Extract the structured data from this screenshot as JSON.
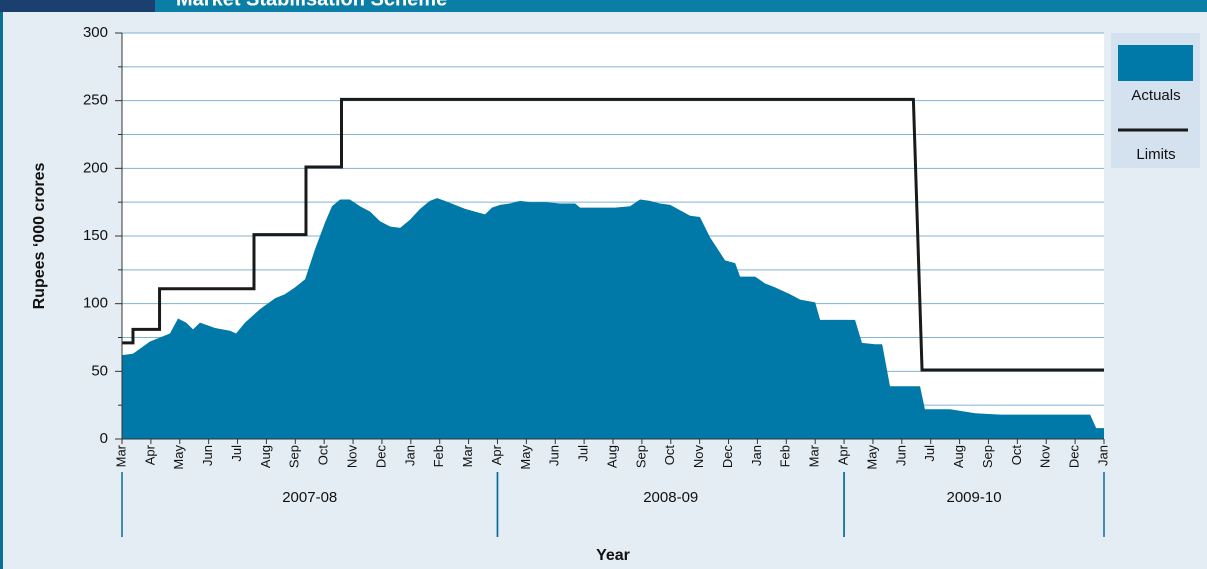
{
  "chart_data": {
    "type": "area-line",
    "title": "Market Stabilisation Scheme",
    "y_label": "Rupees ‘000 crores",
    "x_label": "Year",
    "xlim": [
      0,
      34
    ],
    "xticks": [
      {
        "value": 0,
        "label": "Mar"
      },
      {
        "value": 1,
        "label": "Apr"
      },
      {
        "value": 2,
        "label": "May"
      },
      {
        "value": 3,
        "label": "Jun"
      },
      {
        "value": 4,
        "label": "Jul"
      },
      {
        "value": 5,
        "label": "Aug"
      },
      {
        "value": 6,
        "label": "Sep"
      },
      {
        "value": 7,
        "label": "Oct"
      },
      {
        "value": 8,
        "label": "Nov"
      },
      {
        "value": 9,
        "label": "Dec"
      },
      {
        "value": 10,
        "label": "Jan"
      },
      {
        "value": 11,
        "label": "Feb"
      },
      {
        "value": 12,
        "label": "Mar"
      },
      {
        "value": 13,
        "label": "Apr"
      },
      {
        "value": 14,
        "label": "May"
      },
      {
        "value": 15,
        "label": "Jun"
      },
      {
        "value": 16,
        "label": "Jul"
      },
      {
        "value": 17,
        "label": "Aug"
      },
      {
        "value": 18,
        "label": "Sep"
      },
      {
        "value": 19,
        "label": "Oct"
      },
      {
        "value": 20,
        "label": "Nov"
      },
      {
        "value": 21,
        "label": "Dec"
      },
      {
        "value": 22,
        "label": "Jan"
      },
      {
        "value": 23,
        "label": "Feb"
      },
      {
        "value": 24,
        "label": "Mar"
      },
      {
        "value": 25,
        "label": "Apr"
      },
      {
        "value": 26,
        "label": "May"
      },
      {
        "value": 27,
        "label": "Jun"
      },
      {
        "value": 28,
        "label": "Jul"
      },
      {
        "value": 29,
        "label": "Aug"
      },
      {
        "value": 30,
        "label": "Sep"
      },
      {
        "value": 31,
        "label": "Oct"
      },
      {
        "value": 32,
        "label": "Nov"
      },
      {
        "value": 33,
        "label": "Dec"
      },
      {
        "value": 34,
        "label": "Jan"
      }
    ],
    "x_groups": [
      {
        "label": "2007-08",
        "start": 0,
        "end": 13
      },
      {
        "label": "2008-09",
        "start": 13,
        "end": 25
      },
      {
        "label": "2009-10",
        "start": 25,
        "end": 34
      }
    ],
    "ylim": [
      0,
      300
    ],
    "yticks": [
      0,
      50,
      100,
      150,
      200,
      250,
      300
    ],
    "minor_yticks": [
      25,
      75,
      125,
      175,
      225,
      275
    ],
    "grid": true,
    "legend": "right",
    "series": [
      {
        "name": "Actuals",
        "kind": "area",
        "color": "#0079a8",
        "x": [
          0,
          0.38,
          0.97,
          1.66,
          1.94,
          2.22,
          2.46,
          2.7,
          3.22,
          3.74,
          3.95,
          4.26,
          4.78,
          5.3,
          5.64,
          5.99,
          6.34,
          6.68,
          7.03,
          7.27,
          7.55,
          7.89,
          8.24,
          8.59,
          8.93,
          9.28,
          9.63,
          9.97,
          10.32,
          10.66,
          10.91,
          11.18,
          11.53,
          11.88,
          12.22,
          12.57,
          12.81,
          13.09,
          13.43,
          13.78,
          14.13,
          14.65,
          15.17,
          15.69,
          15.86,
          16.55,
          17.07,
          17.59,
          17.94,
          18.28,
          18.63,
          18.98,
          19.32,
          19.67,
          20.01,
          20.36,
          20.88,
          21.23,
          21.4,
          21.92,
          22.26,
          22.61,
          23.13,
          23.48,
          24.0,
          24.17,
          25.38,
          25.62,
          26.07,
          26.32,
          26.59,
          27.63,
          27.8,
          28.67,
          29.54,
          30.4,
          33.52,
          33.73,
          34
        ],
        "values": [
          62,
          63,
          72,
          78,
          89,
          86,
          81,
          86,
          82,
          80,
          78,
          86,
          96,
          104,
          107,
          112,
          118,
          140,
          160,
          172,
          177,
          177,
          172,
          168,
          161,
          157,
          156,
          162,
          170,
          176,
          178,
          176,
          173,
          170,
          168,
          166,
          171,
          173,
          174,
          176,
          175,
          175,
          174,
          174,
          171,
          171,
          171,
          172,
          177,
          176,
          174,
          173,
          169,
          165,
          164,
          149,
          132,
          130,
          120,
          120,
          115,
          112,
          107,
          103,
          101,
          88,
          88,
          71,
          70,
          70,
          39,
          39,
          22,
          22,
          19,
          18,
          18,
          8,
          8
        ]
      },
      {
        "name": "Limits",
        "kind": "line",
        "color": "#1a1a1a",
        "x": [
          0,
          0.38,
          0.38,
          0.9,
          0.9,
          1.3,
          1.3,
          4.57,
          4.57,
          6.37,
          6.37,
          7.6,
          7.6,
          27.4,
          27.7,
          34
        ],
        "values": [
          71,
          71,
          81,
          81,
          81,
          81,
          111,
          111,
          151,
          151,
          201,
          201,
          251,
          251,
          51,
          51
        ]
      }
    ]
  }
}
